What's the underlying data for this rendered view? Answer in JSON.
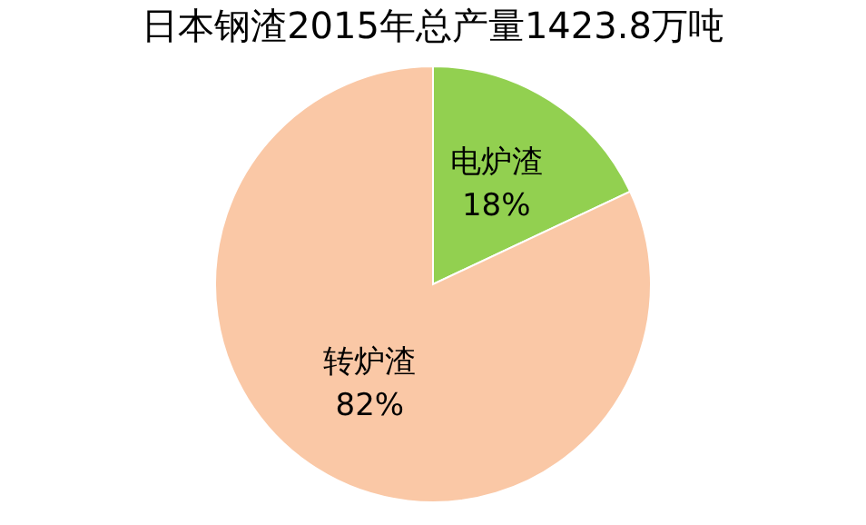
{
  "chart_data": {
    "type": "pie",
    "title": "日本钢渣2015年总产量1423.8万吨",
    "categories": [
      "电炉渣",
      "转炉渣"
    ],
    "values": [
      18,
      82
    ],
    "colors": [
      "#92d050",
      "#fac8a6"
    ],
    "value_labels": [
      "18%",
      "82%"
    ],
    "legend": false
  }
}
